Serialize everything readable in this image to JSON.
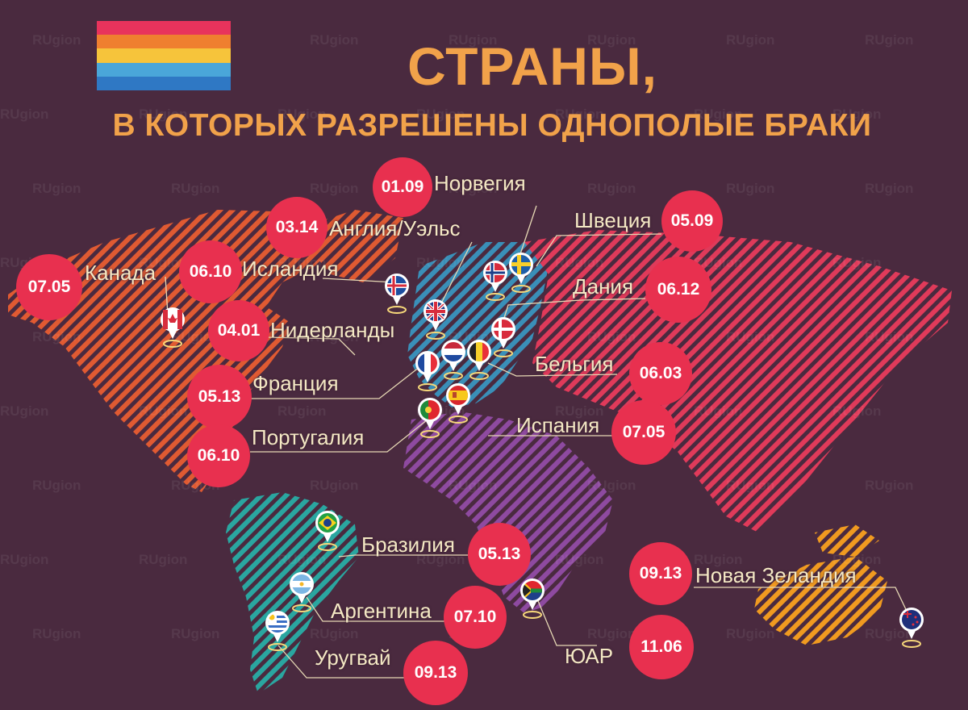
{
  "title": "СТРАНЫ,",
  "subtitle": "В КОТОРЫХ РАЗРЕШЕНЫ ОДНОПОЛЫЕ БРАКИ",
  "watermark": "RUgion",
  "colors": {
    "background": "#4a2a3f",
    "title": "#f1a24a",
    "badge": "#e8304f",
    "label": "#f4e8c4",
    "rainbow": [
      "#e8335c",
      "#ef7f2f",
      "#f6c43b",
      "#4aa6d9",
      "#2f78c4"
    ],
    "regions": {
      "north-america": "#e05a32",
      "eurasia": "#e03a5a",
      "europe-west": "#3a8fb8",
      "africa": "#8e4aa0",
      "south-america": "#2aa6a0",
      "oceania": "#f09a20"
    }
  },
  "countries": [
    {
      "id": "norway",
      "name": "Норвегия",
      "date": "01.09",
      "flag": "norway-flag-icon"
    },
    {
      "id": "england-wales",
      "name": "Англия/Уэльс",
      "date": "03.14",
      "flag": "uk-flag-icon"
    },
    {
      "id": "sweden",
      "name": "Швеция",
      "date": "05.09",
      "flag": "sweden-flag-icon"
    },
    {
      "id": "canada",
      "name": "Канада",
      "date": "07.05",
      "flag": "canada-flag-icon"
    },
    {
      "id": "iceland",
      "name": "Исландия",
      "date": "06.10",
      "flag": "iceland-flag-icon"
    },
    {
      "id": "denmark",
      "name": "Дания",
      "date": "06.12",
      "flag": "denmark-flag-icon"
    },
    {
      "id": "netherlands",
      "name": "Нидерланды",
      "date": "04.01",
      "flag": "netherlands-flag-icon"
    },
    {
      "id": "belgium",
      "name": "Бельгия",
      "date": "06.03",
      "flag": "belgium-flag-icon"
    },
    {
      "id": "france",
      "name": "Франция",
      "date": "05.13",
      "flag": "france-flag-icon"
    },
    {
      "id": "spain",
      "name": "Испания",
      "date": "07.05",
      "flag": "spain-flag-icon"
    },
    {
      "id": "portugal",
      "name": "Португалия",
      "date": "06.10",
      "flag": "portugal-flag-icon"
    },
    {
      "id": "brazil",
      "name": "Бразилия",
      "date": "05.13",
      "flag": "brazil-flag-icon"
    },
    {
      "id": "new-zealand",
      "name": "Новая Зеландия",
      "date": "09.13",
      "flag": "new-zealand-flag-icon"
    },
    {
      "id": "argentina",
      "name": "Аргентина",
      "date": "07.10",
      "flag": "argentina-flag-icon"
    },
    {
      "id": "south-africa",
      "name": "ЮАР",
      "date": "11.06",
      "flag": "south-africa-flag-icon"
    },
    {
      "id": "uruguay",
      "name": "Уругвай",
      "date": "09.13",
      "flag": "uruguay-flag-icon"
    }
  ]
}
